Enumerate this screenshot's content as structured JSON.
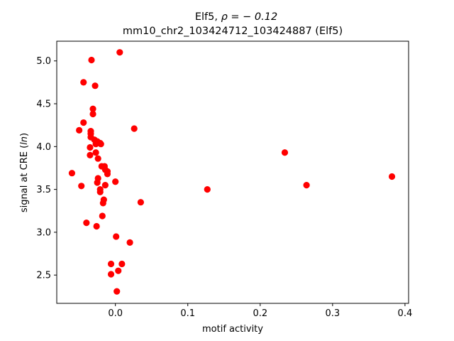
{
  "chart_data": {
    "type": "scatter",
    "title_line1_prefix": "Elf5, ",
    "title_line1_math": "ρ = − 0.12",
    "title_line2": "mm10_chr2_103424712_103424887 (Elf5)",
    "xlabel": "motif activity",
    "ylabel_prefix": "signal at CRE (",
    "ylabel_math": "ln",
    "ylabel_suffix": ")",
    "xlim": [
      -0.081,
      0.405
    ],
    "ylim": [
      2.17,
      5.23
    ],
    "xticks": [
      0.0,
      0.1,
      0.2,
      0.3,
      0.4
    ],
    "xtick_labels": [
      "0.0",
      "0.1",
      "0.2",
      "0.3",
      "0.4"
    ],
    "yticks": [
      2.5,
      3.0,
      3.5,
      4.0,
      4.5,
      5.0
    ],
    "ytick_labels": [
      "2.5",
      "3.0",
      "3.5",
      "4.0",
      "4.5",
      "5.0"
    ],
    "grid": false,
    "marker_color": "#ff0000",
    "points": [
      {
        "x": 0.006,
        "y": 5.1
      },
      {
        "x": -0.033,
        "y": 5.01
      },
      {
        "x": -0.044,
        "y": 4.75
      },
      {
        "x": -0.028,
        "y": 4.71
      },
      {
        "x": -0.031,
        "y": 4.44
      },
      {
        "x": -0.031,
        "y": 4.38
      },
      {
        "x": -0.044,
        "y": 4.28
      },
      {
        "x": 0.026,
        "y": 4.21
      },
      {
        "x": -0.05,
        "y": 4.19
      },
      {
        "x": -0.034,
        "y": 4.18
      },
      {
        "x": -0.034,
        "y": 4.15
      },
      {
        "x": -0.034,
        "y": 4.11
      },
      {
        "x": -0.029,
        "y": 4.08
      },
      {
        "x": -0.025,
        "y": 4.06
      },
      {
        "x": -0.027,
        "y": 4.03
      },
      {
        "x": -0.02,
        "y": 4.03
      },
      {
        "x": -0.021,
        "y": 4.04
      },
      {
        "x": -0.035,
        "y": 3.99
      },
      {
        "x": -0.027,
        "y": 3.93
      },
      {
        "x": -0.035,
        "y": 3.9
      },
      {
        "x": 0.234,
        "y": 3.93
      },
      {
        "x": -0.024,
        "y": 3.86
      },
      {
        "x": -0.019,
        "y": 3.77
      },
      {
        "x": -0.015,
        "y": 3.77
      },
      {
        "x": -0.014,
        "y": 3.73
      },
      {
        "x": -0.011,
        "y": 3.71
      },
      {
        "x": -0.011,
        "y": 3.68
      },
      {
        "x": -0.06,
        "y": 3.69
      },
      {
        "x": 0.382,
        "y": 3.65
      },
      {
        "x": -0.024,
        "y": 3.63
      },
      {
        "x": -0.025,
        "y": 3.58
      },
      {
        "x": 0.0,
        "y": 3.59
      },
      {
        "x": -0.014,
        "y": 3.55
      },
      {
        "x": -0.047,
        "y": 3.54
      },
      {
        "x": 0.264,
        "y": 3.55
      },
      {
        "x": -0.021,
        "y": 3.5
      },
      {
        "x": -0.021,
        "y": 3.47
      },
      {
        "x": 0.127,
        "y": 3.5
      },
      {
        "x": -0.016,
        "y": 3.38
      },
      {
        "x": -0.017,
        "y": 3.34
      },
      {
        "x": 0.035,
        "y": 3.35
      },
      {
        "x": -0.018,
        "y": 3.19
      },
      {
        "x": -0.04,
        "y": 3.11
      },
      {
        "x": -0.026,
        "y": 3.07
      },
      {
        "x": 0.001,
        "y": 2.95
      },
      {
        "x": 0.02,
        "y": 2.88
      },
      {
        "x": -0.006,
        "y": 2.63
      },
      {
        "x": 0.009,
        "y": 2.63
      },
      {
        "x": 0.004,
        "y": 2.55
      },
      {
        "x": -0.006,
        "y": 2.51
      },
      {
        "x": 0.002,
        "y": 2.31
      }
    ]
  }
}
